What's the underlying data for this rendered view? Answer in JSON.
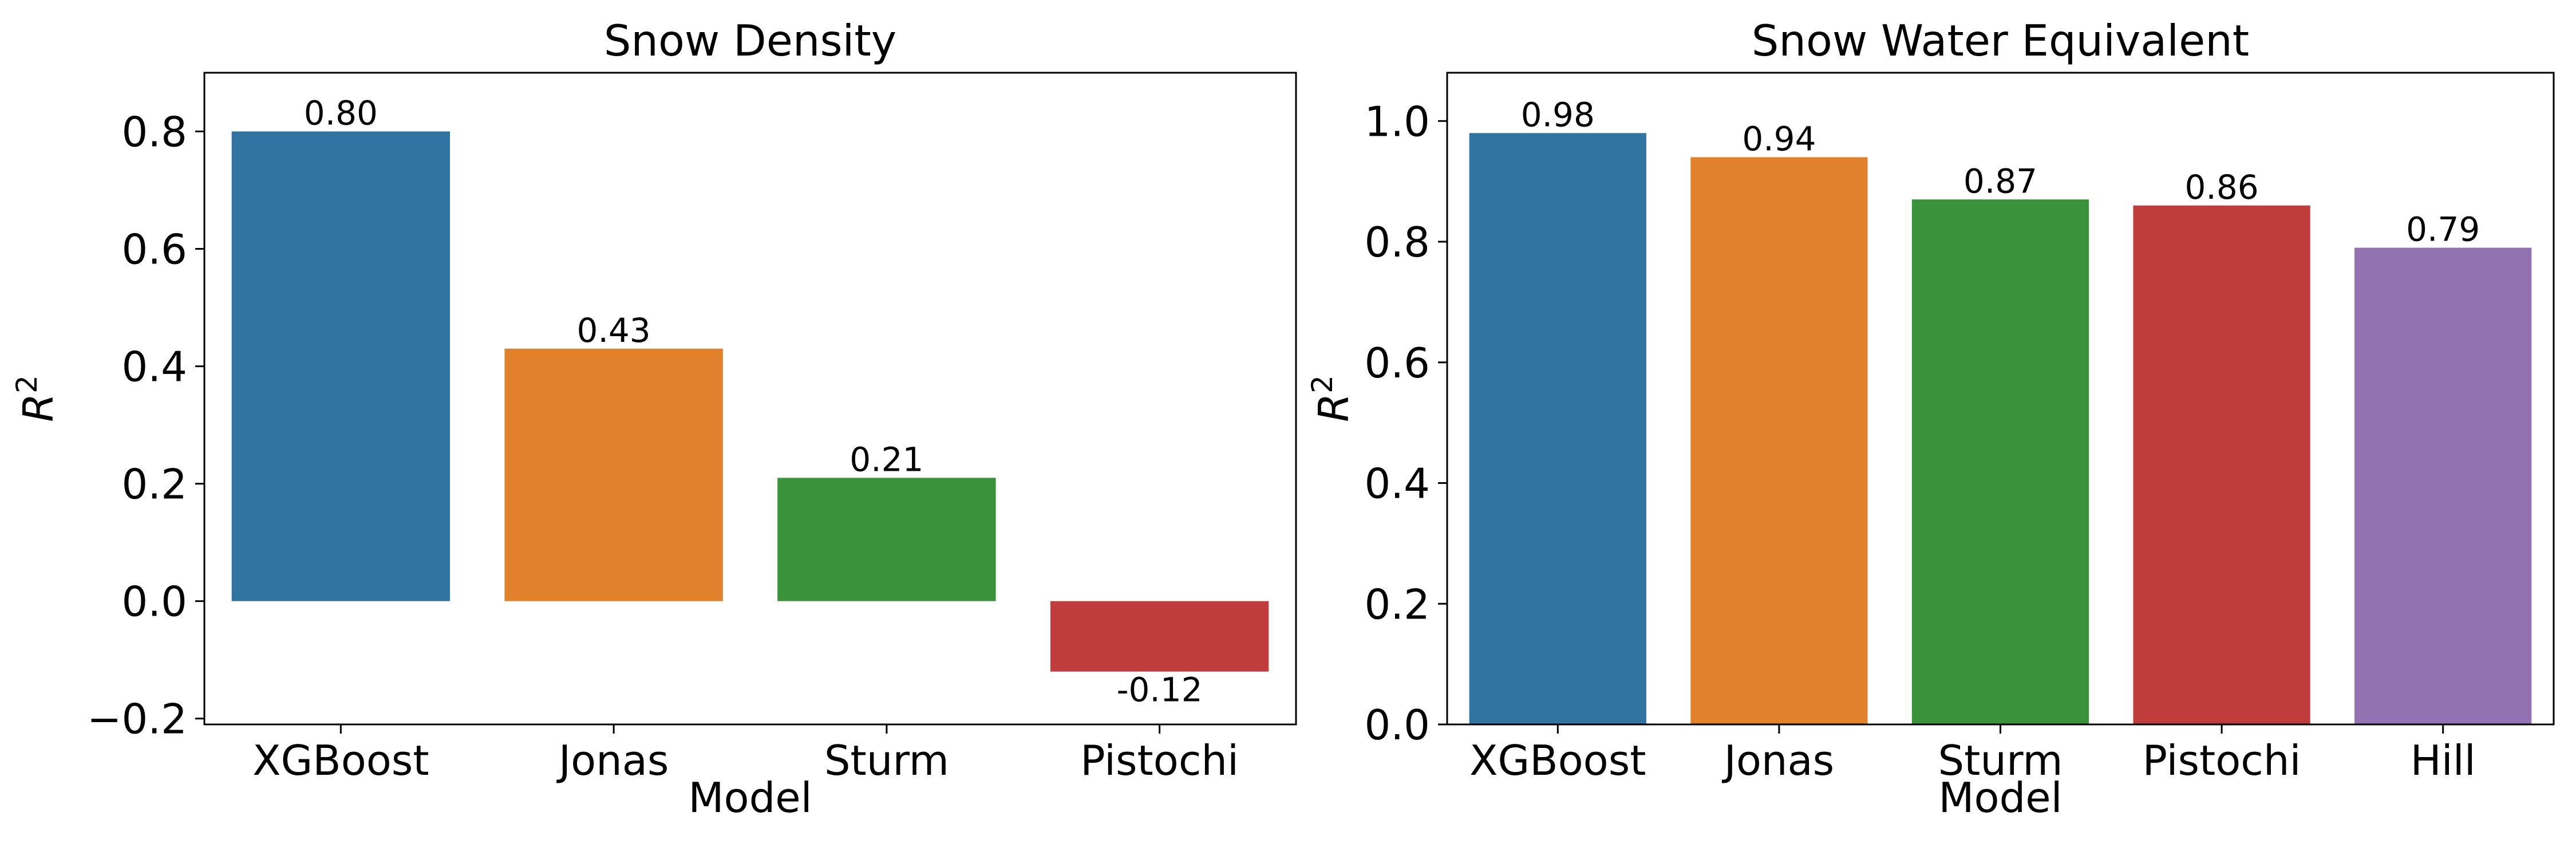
{
  "chart_data": [
    {
      "type": "bar",
      "title": "Snow Density",
      "xlabel": "Model",
      "ylabel": "R²",
      "categories": [
        "XGBoost",
        "Jonas",
        "Sturm",
        "Pistochi"
      ],
      "values": [
        0.8,
        0.43,
        0.21,
        -0.12
      ],
      "value_labels": [
        "0.80",
        "0.43",
        "0.21",
        "-0.12"
      ],
      "colors": [
        "#3274a1",
        "#e1812c",
        "#3a923a",
        "#c03d3e"
      ],
      "ylim": [
        -0.21,
        0.9
      ],
      "yticks": [
        -0.2,
        0.0,
        0.2,
        0.4,
        0.6,
        0.8
      ],
      "ytick_labels": [
        "−0.2",
        "0.0",
        "0.2",
        "0.4",
        "0.6",
        "0.8"
      ],
      "grid": false,
      "legend": "none"
    },
    {
      "type": "bar",
      "title": "Snow Water Equivalent",
      "xlabel": "Model",
      "ylabel": "R²",
      "categories": [
        "XGBoost",
        "Jonas",
        "Sturm",
        "Pistochi",
        "Hill"
      ],
      "values": [
        0.98,
        0.94,
        0.87,
        0.86,
        0.79
      ],
      "value_labels": [
        "0.98",
        "0.94",
        "0.87",
        "0.86",
        "0.79"
      ],
      "colors": [
        "#3274a1",
        "#e1812c",
        "#3a923a",
        "#c03d3e",
        "#9372b2"
      ],
      "ylim": [
        0.0,
        1.08
      ],
      "yticks": [
        0.0,
        0.2,
        0.4,
        0.6,
        0.8,
        1.0
      ],
      "ytick_labels": [
        "0.0",
        "0.2",
        "0.4",
        "0.6",
        "0.8",
        "1.0"
      ],
      "grid": false,
      "legend": "none"
    }
  ]
}
